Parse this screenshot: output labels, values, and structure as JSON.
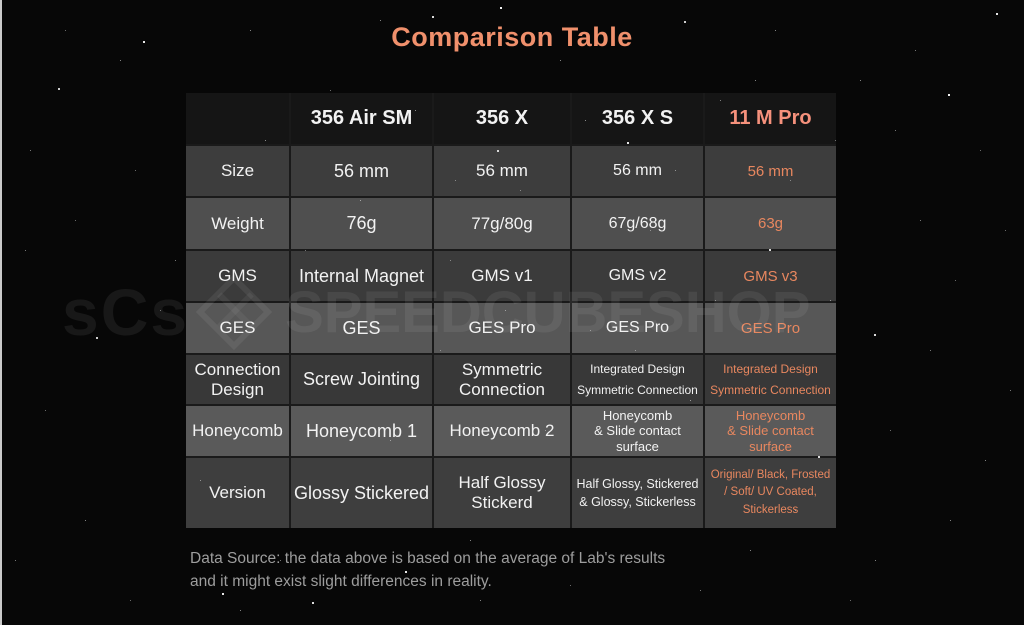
{
  "title": "Comparison Table",
  "colors": {
    "title": "#f0906c",
    "highlight_header": "#f5917c",
    "highlight_cell": "#e8875f",
    "row_dark": "#3d3d3d",
    "row_light": "#575757",
    "footer_text": "#9d9d9d"
  },
  "watermark": {
    "logo": "sCs",
    "text": "SPEEDCUBESHOP"
  },
  "table": {
    "columns": [
      "356 Air SM",
      "356 X",
      "356 X S",
      "11 M Pro"
    ],
    "highlight_column": "11 M Pro",
    "rows": [
      {
        "label": "Size",
        "values": [
          "56 mm",
          "56 mm",
          "56 mm",
          "56 mm"
        ]
      },
      {
        "label": "Weight",
        "values": [
          "76g",
          "77g/80g",
          "67g/68g",
          "63g"
        ]
      },
      {
        "label": "GMS",
        "values": [
          "Internal Magnet",
          "GMS v1",
          "GMS v2",
          "GMS v3"
        ]
      },
      {
        "label": "GES",
        "values": [
          "GES",
          "GES Pro",
          "GES Pro",
          "GES Pro"
        ]
      },
      {
        "label": "Connection\nDesign",
        "values": [
          "Screw Jointing",
          "Symmetric\nConnection",
          "Integrated Design\nSymmetric Connection",
          "Integrated Design\nSymmetric Connection"
        ]
      },
      {
        "label": "Honeycomb",
        "values": [
          "Honeycomb 1",
          "Honeycomb 2",
          "Honeycomb\n& Slide contact\nsurface",
          "Honeycomb\n& Slide contact\nsurface"
        ]
      },
      {
        "label": "Version",
        "values": [
          "Glossy Stickered",
          "Half Glossy\nStickerd",
          "Half Glossy, Stickered\n& Glossy, Stickerless",
          "Original/ Black, Frosted\n/ Soft/ UV Coated,\nStickerless"
        ]
      }
    ]
  },
  "footer": {
    "line1": "Data Source: the data above is based on the average of Lab's results",
    "line2": "and it might exist slight differences in reality."
  },
  "chart_data": {
    "type": "table",
    "title": "Comparison Table",
    "columns": [
      "",
      "356 Air SM",
      "356 X",
      "356 X S",
      "11 M Pro"
    ],
    "rows": [
      [
        "Size",
        "56 mm",
        "56 mm",
        "56 mm",
        "56 mm"
      ],
      [
        "Weight",
        "76g",
        "77g/80g",
        "67g/68g",
        "63g"
      ],
      [
        "GMS",
        "Internal Magnet",
        "GMS v1",
        "GMS v2",
        "GMS v3"
      ],
      [
        "GES",
        "GES",
        "GES Pro",
        "GES Pro",
        "GES Pro"
      ],
      [
        "Connection Design",
        "Screw Jointing",
        "Symmetric Connection",
        "Integrated Design Symmetric Connection",
        "Integrated Design Symmetric Connection"
      ],
      [
        "Honeycomb",
        "Honeycomb 1",
        "Honeycomb 2",
        "Honeycomb & Slide contact surface",
        "Honeycomb & Slide contact surface"
      ],
      [
        "Version",
        "Glossy Stickered",
        "Half Glossy Stickerd",
        "Half Glossy, Stickered & Glossy, Stickerless",
        "Original/ Black, Frosted / Soft/ UV Coated, Stickerless"
      ]
    ],
    "highlight_column": "11 M Pro",
    "footnote": "Data Source: the data above is based on the average of Lab's results and it might exist slight differences in reality."
  }
}
